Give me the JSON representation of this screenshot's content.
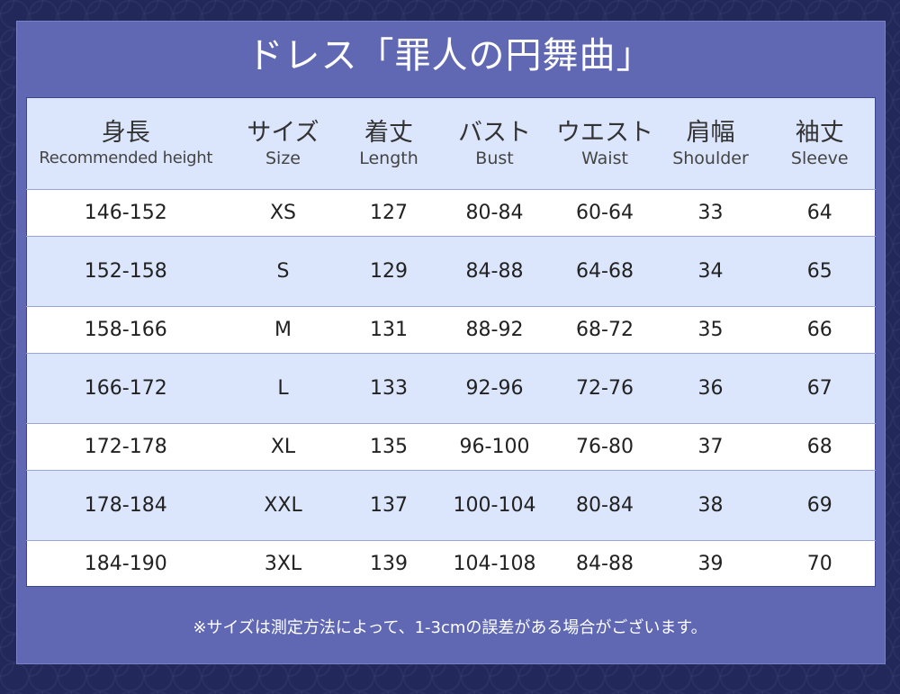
{
  "title": "ドレス「罪人の円舞曲」",
  "table": {
    "headers": [
      {
        "jp": "身長",
        "en": "Recommended height"
      },
      {
        "jp": "サイズ",
        "en": "Size"
      },
      {
        "jp": "着丈",
        "en": "Length"
      },
      {
        "jp": "バスト",
        "en": "Bust"
      },
      {
        "jp": "ウエスト",
        "en": "Waist"
      },
      {
        "jp": "肩幅",
        "en": "Shoulder"
      },
      {
        "jp": "袖丈",
        "en": "Sleeve"
      }
    ],
    "rows": [
      [
        "146-152",
        "XS",
        "127",
        "80-84",
        "60-64",
        "33",
        "64"
      ],
      [
        "152-158",
        "S",
        "129",
        "84-88",
        "64-68",
        "34",
        "65"
      ],
      [
        "158-166",
        "M",
        "131",
        "88-92",
        "68-72",
        "35",
        "66"
      ],
      [
        "166-172",
        "L",
        "133",
        "92-96",
        "72-76",
        "36",
        "67"
      ],
      [
        "172-178",
        "XL",
        "135",
        "96-100",
        "76-80",
        "37",
        "68"
      ],
      [
        "178-184",
        "XXL",
        "137",
        "100-104",
        "80-84",
        "38",
        "69"
      ],
      [
        "184-190",
        "3XL",
        "139",
        "104-108",
        "84-88",
        "39",
        "70"
      ]
    ]
  },
  "footnote": "※サイズは測定方法によって、1-3cmの誤差がある場合がございます。",
  "colors": {
    "background": "#22285a",
    "panel": "#6068b3",
    "row_blue": "#dbe5fb",
    "row_white": "#ffffff",
    "text": "#222222"
  }
}
